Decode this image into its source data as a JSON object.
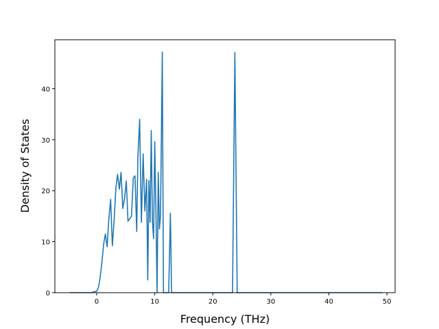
{
  "chart_data": {
    "type": "line",
    "title": "",
    "xlabel": "Frequency (THz)",
    "ylabel": "Density of States",
    "xlim": [
      -7.2,
      51.4
    ],
    "ylim": [
      0,
      49.6
    ],
    "xticks": [
      0,
      10,
      20,
      30,
      40,
      50
    ],
    "yticks": [
      0,
      10,
      20,
      30,
      40
    ],
    "grid": false,
    "legend": "none",
    "colors": {
      "line": "#1f77b4"
    },
    "series": [
      {
        "x": [
          -4.6,
          -1.0,
          0.0,
          0.3,
          0.6,
          0.9,
          1.2,
          1.5,
          1.8,
          2.1,
          2.4,
          2.7,
          3.0,
          3.3,
          3.6,
          3.9,
          4.2,
          4.5,
          4.8,
          5.1,
          5.4,
          5.7,
          6.0,
          6.3,
          6.6,
          6.9,
          7.1,
          7.4,
          7.7,
          8.0,
          8.3,
          8.6,
          8.8,
          9.0,
          9.2,
          9.4,
          9.6,
          9.8,
          10.0,
          10.2,
          10.4,
          10.6,
          10.8,
          11.0,
          11.3,
          11.5,
          11.8,
          12.1,
          12.4,
          12.7,
          12.9,
          13.1,
          13.3,
          23.4,
          23.8,
          24.2,
          49.2
        ],
        "y": [
          0,
          0,
          0.3,
          1.0,
          3.0,
          6.0,
          9.5,
          11.5,
          9.0,
          14.5,
          18.3,
          9.2,
          14.0,
          20.5,
          23.2,
          20.3,
          23.6,
          16.5,
          18.5,
          21.9,
          14.0,
          14.5,
          15.0,
          22.5,
          22.9,
          12.0,
          26.5,
          34.0,
          13.8,
          27.2,
          16.0,
          22.2,
          2.5,
          22.0,
          13.8,
          31.8,
          14.0,
          10.6,
          29.6,
          16.0,
          0,
          23.6,
          12.5,
          15.0,
          47.2,
          0,
          0,
          0,
          0,
          15.6,
          0,
          0,
          0,
          0,
          47.1,
          0,
          0
        ]
      }
    ]
  }
}
